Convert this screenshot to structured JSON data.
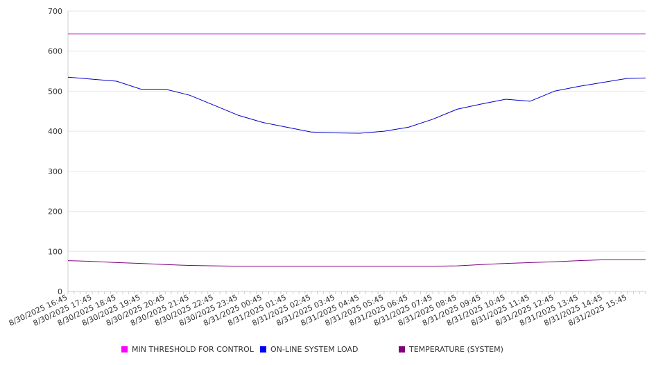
{
  "chart_data": {
    "type": "line",
    "title": "",
    "xlabel": "",
    "ylabel": "",
    "ylim": [
      0,
      700
    ],
    "yticks": [
      0,
      100,
      200,
      300,
      400,
      500,
      600,
      700
    ],
    "grid": true,
    "legend_position": "bottom",
    "x_tick_labels": [
      "8/30/2025 16:45",
      "8/30/2025 17:45",
      "8/30/2025 18:45",
      "8/30/2025 19:45",
      "8/30/2025 20:45",
      "8/30/2025 21:45",
      "8/30/2025 22:45",
      "8/30/2025 23:45",
      "8/31/2025 00:45",
      "8/31/2025 01:45",
      "8/31/2025 02:45",
      "8/31/2025 03:45",
      "8/31/2025 04:45",
      "8/31/2025 05:45",
      "8/31/2025 06:45",
      "8/31/2025 07:45",
      "8/31/2025 08:45",
      "8/31/2025 09:45",
      "8/31/2025 10:45",
      "8/31/2025 11:45",
      "8/31/2025 12:45",
      "8/31/2025 13:45",
      "8/31/2025 14:45",
      "8/31/2025 15:45"
    ],
    "x_hours": [
      0,
      1,
      2,
      3,
      4,
      5,
      6,
      7,
      8,
      9,
      10,
      11,
      12,
      13,
      14,
      15,
      16,
      17,
      18,
      19,
      20,
      21,
      22,
      23,
      23.75
    ],
    "series": [
      {
        "name": "MIN THRESHOLD FOR CONTROL",
        "color": "#cc33cc",
        "values": [
          643,
          643,
          643,
          643,
          643,
          643,
          643,
          643,
          643,
          643,
          643,
          643,
          643,
          643,
          643,
          643,
          643,
          643,
          643,
          643,
          643,
          643,
          643,
          643,
          643
        ]
      },
      {
        "name": "ON-LINE SYSTEM LOAD",
        "color": "#0000cc",
        "values": [
          535,
          530,
          525,
          505,
          505,
          490,
          465,
          440,
          422,
          410,
          398,
          396,
          395,
          400,
          410,
          430,
          455,
          468,
          480,
          475,
          500,
          512,
          522,
          532,
          533
        ]
      },
      {
        "name": "TEMPERATURE (SYSTEM)",
        "color": "#800080",
        "values": [
          77,
          75,
          72,
          70,
          67,
          65,
          64,
          63,
          63,
          63,
          63,
          63,
          63,
          63,
          63,
          63,
          64,
          67,
          70,
          72,
          74,
          77,
          79,
          79,
          79
        ]
      }
    ]
  }
}
